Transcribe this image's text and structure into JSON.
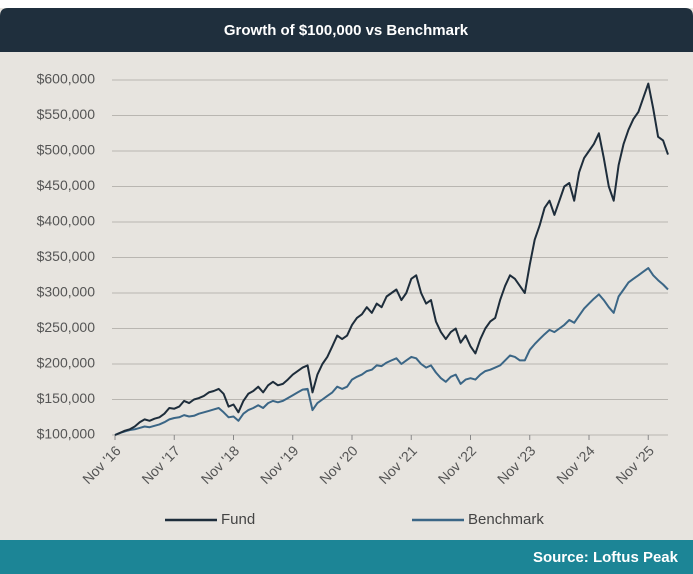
{
  "chart_data": {
    "type": "line",
    "title": "Growth of $100,000 vs Benchmark",
    "source": "Source: Loftus Peak",
    "x": [
      "2016-11",
      "2016-12",
      "2017-01",
      "2017-02",
      "2017-03",
      "2017-04",
      "2017-05",
      "2017-06",
      "2017-07",
      "2017-08",
      "2017-09",
      "2017-10",
      "2017-11",
      "2017-12",
      "2018-01",
      "2018-02",
      "2018-03",
      "2018-04",
      "2018-05",
      "2018-06",
      "2018-07",
      "2018-08",
      "2018-09",
      "2018-10",
      "2018-11",
      "2018-12",
      "2019-01",
      "2019-02",
      "2019-03",
      "2019-04",
      "2019-05",
      "2019-06",
      "2019-07",
      "2019-08",
      "2019-09",
      "2019-10",
      "2019-11",
      "2019-12",
      "2020-01",
      "2020-02",
      "2020-03",
      "2020-04",
      "2020-05",
      "2020-06",
      "2020-07",
      "2020-08",
      "2020-09",
      "2020-10",
      "2020-11",
      "2020-12",
      "2021-01",
      "2021-02",
      "2021-03",
      "2021-04",
      "2021-05",
      "2021-06",
      "2021-07",
      "2021-08",
      "2021-09",
      "2021-10",
      "2021-11",
      "2021-12",
      "2022-01",
      "2022-02",
      "2022-03",
      "2022-04",
      "2022-05",
      "2022-06",
      "2022-07",
      "2022-08",
      "2022-09",
      "2022-10",
      "2022-11",
      "2022-12",
      "2023-01",
      "2023-02",
      "2023-03",
      "2023-04",
      "2023-05",
      "2023-06",
      "2023-07",
      "2023-08",
      "2023-09",
      "2023-10",
      "2023-11",
      "2023-12",
      "2024-01",
      "2024-02",
      "2024-03",
      "2024-04",
      "2024-05",
      "2024-06",
      "2024-07",
      "2024-08",
      "2024-09",
      "2024-10",
      "2024-11",
      "2024-12",
      "2025-01",
      "2025-02",
      "2025-03",
      "2025-04",
      "2025-05",
      "2025-06",
      "2025-07",
      "2025-08",
      "2025-09",
      "2025-10",
      "2025-11",
      "2025-12",
      "2026-01",
      "2026-02",
      "2026-03"
    ],
    "series": [
      {
        "name": "Fund",
        "color": "#1e2d3b",
        "values": [
          100000,
          103000,
          106000,
          108000,
          112000,
          118000,
          122000,
          120000,
          123000,
          125000,
          130000,
          138000,
          137000,
          140000,
          148000,
          145000,
          150000,
          152000,
          155000,
          160000,
          162000,
          165000,
          158000,
          140000,
          143000,
          132000,
          148000,
          158000,
          162000,
          168000,
          160000,
          170000,
          175000,
          170000,
          172000,
          178000,
          185000,
          190000,
          195000,
          198000,
          160000,
          185000,
          200000,
          210000,
          225000,
          240000,
          235000,
          240000,
          255000,
          265000,
          270000,
          280000,
          272000,
          285000,
          280000,
          295000,
          300000,
          305000,
          290000,
          300000,
          320000,
          325000,
          300000,
          285000,
          290000,
          260000,
          245000,
          235000,
          245000,
          250000,
          230000,
          240000,
          225000,
          215000,
          235000,
          250000,
          260000,
          265000,
          290000,
          310000,
          325000,
          320000,
          310000,
          300000,
          340000,
          375000,
          395000,
          420000,
          430000,
          410000,
          430000,
          450000,
          455000,
          430000,
          470000,
          490000,
          500000,
          510000,
          525000,
          490000,
          450000,
          430000,
          480000,
          510000,
          530000,
          545000,
          555000,
          575000,
          595000,
          560000,
          520000,
          515000,
          495000
        ]
      },
      {
        "name": "Benchmark",
        "color": "#3b6686",
        "values": [
          100000,
          103000,
          105000,
          107000,
          108000,
          110000,
          112000,
          111000,
          113000,
          115000,
          118000,
          122000,
          124000,
          125000,
          128000,
          126000,
          127000,
          130000,
          132000,
          134000,
          136000,
          138000,
          132000,
          125000,
          126000,
          120000,
          130000,
          135000,
          138000,
          142000,
          138000,
          145000,
          148000,
          146000,
          148000,
          152000,
          156000,
          160000,
          164000,
          165000,
          135000,
          145000,
          150000,
          155000,
          160000,
          168000,
          165000,
          168000,
          178000,
          182000,
          185000,
          190000,
          192000,
          198000,
          197000,
          202000,
          205000,
          208000,
          200000,
          205000,
          210000,
          208000,
          200000,
          195000,
          198000,
          188000,
          180000,
          175000,
          182000,
          185000,
          172000,
          178000,
          180000,
          178000,
          185000,
          190000,
          192000,
          195000,
          198000,
          205000,
          212000,
          210000,
          205000,
          205000,
          220000,
          228000,
          235000,
          242000,
          248000,
          245000,
          250000,
          255000,
          262000,
          258000,
          268000,
          278000,
          285000,
          292000,
          298000,
          290000,
          280000,
          272000,
          295000,
          305000,
          315000,
          320000,
          325000,
          330000,
          335000,
          325000,
          318000,
          312000,
          305000
        ]
      }
    ],
    "ylim": [
      100000,
      600000
    ],
    "yticks": [
      {
        "value": 100000,
        "label": "$100,000"
      },
      {
        "value": 150000,
        "label": "$150,000"
      },
      {
        "value": 200000,
        "label": "$200,000"
      },
      {
        "value": 250000,
        "label": "$250,000"
      },
      {
        "value": 300000,
        "label": "$300,000"
      },
      {
        "value": 350000,
        "label": "$350,000"
      },
      {
        "value": 400000,
        "label": "$400,000"
      },
      {
        "value": 450000,
        "label": "$450,000"
      },
      {
        "value": 500000,
        "label": "$500,000"
      },
      {
        "value": 550000,
        "label": "$550,000"
      },
      {
        "value": 600000,
        "label": "$600,000"
      }
    ],
    "xticks": [
      {
        "value": "2016-11",
        "label": "Nov '16"
      },
      {
        "value": "2017-11",
        "label": "Nov '17"
      },
      {
        "value": "2018-11",
        "label": "Nov '18"
      },
      {
        "value": "2019-11",
        "label": "Nov '19"
      },
      {
        "value": "2020-11",
        "label": "Nov '20"
      },
      {
        "value": "2021-11",
        "label": "Nov '21"
      },
      {
        "value": "2022-11",
        "label": "Nov '22"
      },
      {
        "value": "2023-11",
        "label": "Nov '23"
      },
      {
        "value": "2024-11",
        "label": "Nov '24"
      },
      {
        "value": "2025-11",
        "label": "Nov '25"
      }
    ],
    "grid": true,
    "legend": "bottom"
  }
}
